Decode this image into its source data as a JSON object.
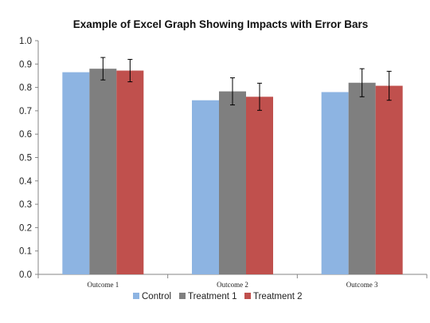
{
  "chart_data": {
    "type": "bar",
    "title": "Example of Excel Graph Showing Impacts with Error Bars",
    "xlabel": "",
    "ylabel": "",
    "categories": [
      "Outcome 1",
      "Outcome 2",
      "Outcome 3"
    ],
    "series": [
      {
        "name": "Control",
        "color": "#8DB4E2",
        "values": [
          0.865,
          0.745,
          0.78
        ],
        "errors": [
          null,
          null,
          null
        ]
      },
      {
        "name": "Treatment 1",
        "color": "#7F7F7F",
        "values": [
          0.88,
          0.783,
          0.82
        ],
        "errors": [
          0.048,
          0.058,
          0.06
        ]
      },
      {
        "name": "Treatment 2",
        "color": "#C0504D",
        "values": [
          0.872,
          0.76,
          0.807
        ],
        "errors": [
          0.048,
          0.058,
          0.062
        ]
      }
    ],
    "ylim": [
      0.0,
      1.0
    ],
    "yticks": [
      "0.0",
      "0.1",
      "0.2",
      "0.3",
      "0.4",
      "0.5",
      "0.6",
      "0.7",
      "0.8",
      "0.9",
      "1.0"
    ],
    "grid": false,
    "legend_position": "bottom"
  }
}
